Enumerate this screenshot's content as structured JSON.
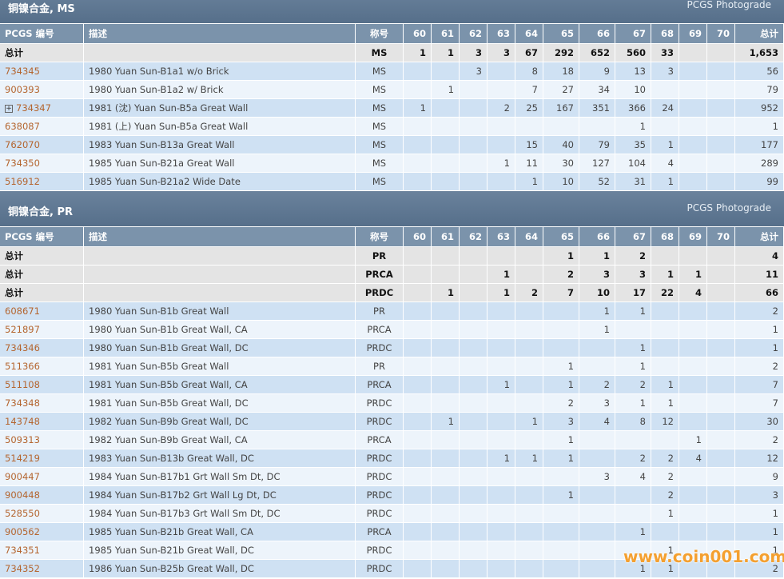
{
  "sections": [
    {
      "title": "铜镍合金, MS",
      "right": "PCGS Photograde",
      "expandable_rows": [
        2
      ],
      "columns": [
        "PCGS 编号",
        "描述",
        "称号",
        "60",
        "61",
        "62",
        "63",
        "64",
        "65",
        "66",
        "67",
        "68",
        "69",
        "70",
        "总计"
      ],
      "totals": [
        [
          "总计",
          null,
          "MS",
          "1",
          "1",
          "3",
          "3",
          "67",
          "292",
          "652",
          "560",
          "33",
          null,
          null,
          "1,653"
        ]
      ],
      "rows": [
        [
          "734345",
          "1980 Yuan Sun-B1a1 w/o Brick",
          "MS",
          null,
          null,
          "3",
          null,
          "8",
          "18",
          "9",
          "13",
          "3",
          null,
          null,
          "56"
        ],
        [
          "900393",
          "1980 Yuan Sun-B1a2 w/ Brick",
          "MS",
          null,
          "1",
          null,
          null,
          "7",
          "27",
          "34",
          "10",
          null,
          null,
          null,
          "79"
        ],
        [
          "734347",
          "1981 (沈) Yuan Sun-B5a Great Wall",
          "MS",
          "1",
          null,
          null,
          "2",
          "25",
          "167",
          "351",
          "366",
          "24",
          null,
          null,
          "952"
        ],
        [
          "638087",
          "1981 (上) Yuan Sun-B5a Great Wall",
          "MS",
          null,
          null,
          null,
          null,
          null,
          null,
          null,
          "1",
          null,
          null,
          null,
          "1"
        ],
        [
          "762070",
          "1983 Yuan Sun-B13a Great Wall",
          "MS",
          null,
          null,
          null,
          null,
          "15",
          "40",
          "79",
          "35",
          "1",
          null,
          null,
          "177"
        ],
        [
          "734350",
          "1985 Yuan Sun-B21a Great Wall",
          "MS",
          null,
          null,
          null,
          "1",
          "11",
          "30",
          "127",
          "104",
          "4",
          null,
          null,
          "289"
        ],
        [
          "516912",
          "1985 Yuan Sun-B21a2 Wide Date",
          "MS",
          null,
          null,
          null,
          null,
          "1",
          "10",
          "52",
          "31",
          "1",
          null,
          null,
          "99"
        ]
      ]
    },
    {
      "title": "铜镍合金, PR",
      "right": "PCGS Photograde",
      "expandable_rows": [],
      "columns": [
        "PCGS 编号",
        "描述",
        "称号",
        "60",
        "61",
        "62",
        "63",
        "64",
        "65",
        "66",
        "67",
        "68",
        "69",
        "70",
        "总计"
      ],
      "totals": [
        [
          "总计",
          null,
          "PR",
          null,
          null,
          null,
          null,
          null,
          "1",
          "1",
          "2",
          null,
          null,
          null,
          "4"
        ],
        [
          "总计",
          null,
          "PRCA",
          null,
          null,
          null,
          "1",
          null,
          "2",
          "3",
          "3",
          "1",
          "1",
          null,
          "11"
        ],
        [
          "总计",
          null,
          "PRDC",
          null,
          "1",
          null,
          "1",
          "2",
          "7",
          "10",
          "17",
          "22",
          "4",
          null,
          "66"
        ]
      ],
      "rows": [
        [
          "608671",
          "1980 Yuan Sun-B1b Great Wall",
          "PR",
          null,
          null,
          null,
          null,
          null,
          null,
          "1",
          "1",
          null,
          null,
          null,
          "2"
        ],
        [
          "521897",
          "1980 Yuan Sun-B1b Great Wall, CA",
          "PRCA",
          null,
          null,
          null,
          null,
          null,
          null,
          "1",
          null,
          null,
          null,
          null,
          "1"
        ],
        [
          "734346",
          "1980 Yuan Sun-B1b Great Wall, DC",
          "PRDC",
          null,
          null,
          null,
          null,
          null,
          null,
          null,
          "1",
          null,
          null,
          null,
          "1"
        ],
        [
          "511366",
          "1981 Yuan Sun-B5b Great Wall",
          "PR",
          null,
          null,
          null,
          null,
          null,
          "1",
          null,
          "1",
          null,
          null,
          null,
          "2"
        ],
        [
          "511108",
          "1981 Yuan Sun-B5b Great Wall, CA",
          "PRCA",
          null,
          null,
          null,
          "1",
          null,
          "1",
          "2",
          "2",
          "1",
          null,
          null,
          "7"
        ],
        [
          "734348",
          "1981 Yuan Sun-B5b Great Wall, DC",
          "PRDC",
          null,
          null,
          null,
          null,
          null,
          "2",
          "3",
          "1",
          "1",
          null,
          null,
          "7"
        ],
        [
          "143748",
          "1982 Yuan Sun-B9b Great Wall, DC",
          "PRDC",
          null,
          "1",
          null,
          null,
          "1",
          "3",
          "4",
          "8",
          "12",
          null,
          null,
          "30"
        ],
        [
          "509313",
          "1982 Yuan Sun-B9b Great Wall, CA",
          "PRCA",
          null,
          null,
          null,
          null,
          null,
          "1",
          null,
          null,
          null,
          "1",
          null,
          "2"
        ],
        [
          "514219",
          "1983 Yuan Sun-B13b Great Wall, DC",
          "PRDC",
          null,
          null,
          null,
          "1",
          "1",
          "1",
          null,
          "2",
          "2",
          "4",
          null,
          "12"
        ],
        [
          "900447",
          "1984 Yuan Sun-B17b1 Grt Wall Sm Dt, DC",
          "PRDC",
          null,
          null,
          null,
          null,
          null,
          null,
          "3",
          "4",
          "2",
          null,
          null,
          "9"
        ],
        [
          "900448",
          "1984 Yuan Sun-B17b2 Grt Wall Lg Dt, DC",
          "PRDC",
          null,
          null,
          null,
          null,
          null,
          "1",
          null,
          null,
          "2",
          null,
          null,
          "3"
        ],
        [
          "528550",
          "1984 Yuan Sun-B17b3 Grt Wall Sm Dt, DC",
          "PRDC",
          null,
          null,
          null,
          null,
          null,
          null,
          null,
          null,
          "1",
          null,
          null,
          "1"
        ],
        [
          "900562",
          "1985 Yuan Sun-B21b Great Wall, CA",
          "PRCA",
          null,
          null,
          null,
          null,
          null,
          null,
          null,
          "1",
          null,
          null,
          null,
          "1"
        ],
        [
          "734351",
          "1985 Yuan Sun-B21b Great Wall, DC",
          "PRDC",
          null,
          null,
          null,
          null,
          null,
          null,
          null,
          null,
          "1",
          null,
          null,
          "1"
        ],
        [
          "734352",
          "1986 Yuan Sun-B25b Great Wall, DC",
          "PRDC",
          null,
          null,
          null,
          null,
          null,
          null,
          null,
          "1",
          "1",
          null,
          null,
          "2"
        ]
      ]
    }
  ],
  "watermark": "www.coin001.com"
}
